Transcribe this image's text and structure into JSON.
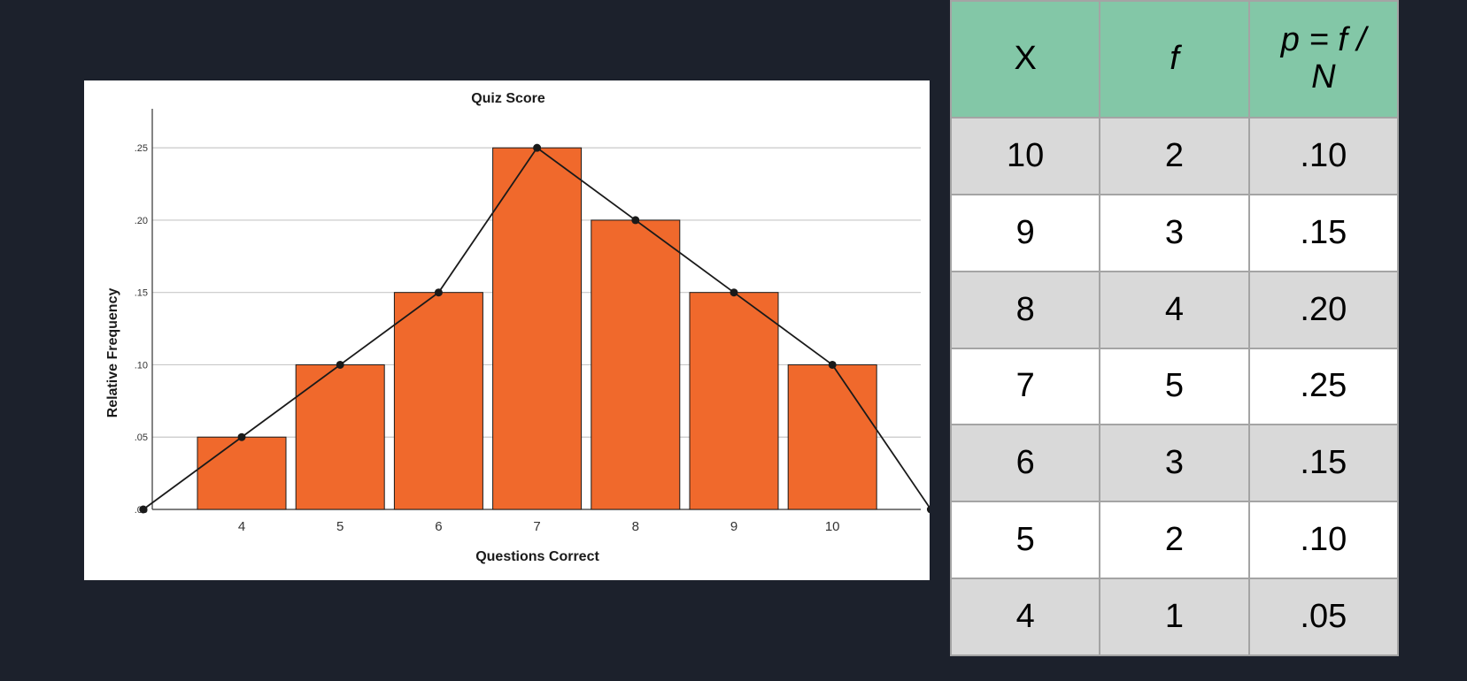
{
  "chart_data": {
    "type": "bar",
    "title": "Quiz Score",
    "xlabel": "Questions Correct",
    "ylabel": "Relative Frequency",
    "categories": [
      "4",
      "5",
      "6",
      "7",
      "8",
      "9",
      "10"
    ],
    "values": [
      0.05,
      0.1,
      0.15,
      0.25,
      0.2,
      0.15,
      0.1
    ],
    "polygon": {
      "x": [
        3,
        4,
        5,
        6,
        7,
        8,
        9,
        10,
        11
      ],
      "y": [
        0.0,
        0.05,
        0.1,
        0.15,
        0.25,
        0.2,
        0.15,
        0.1,
        0.0
      ]
    },
    "yticks": [
      ".00",
      ".05",
      ".10",
      ".15",
      ".20",
      ".25"
    ],
    "ylim": [
      0,
      0.277
    ],
    "grid": true,
    "colors": {
      "bar": "#f0692c",
      "line": "#1a1a1a",
      "grid": "#c8c8c8"
    }
  },
  "table": {
    "headers": [
      "X",
      "f",
      "p = f / N"
    ],
    "rows": [
      [
        "10",
        "2",
        ".10"
      ],
      [
        "9",
        "3",
        ".15"
      ],
      [
        "8",
        "4",
        ".20"
      ],
      [
        "7",
        "5",
        ".25"
      ],
      [
        "6",
        "3",
        ".15"
      ],
      [
        "5",
        "2",
        ".10"
      ],
      [
        "4",
        "1",
        ".05"
      ]
    ],
    "header_color": "#83c7a7",
    "row_alt_color": "#d9d9d9"
  }
}
